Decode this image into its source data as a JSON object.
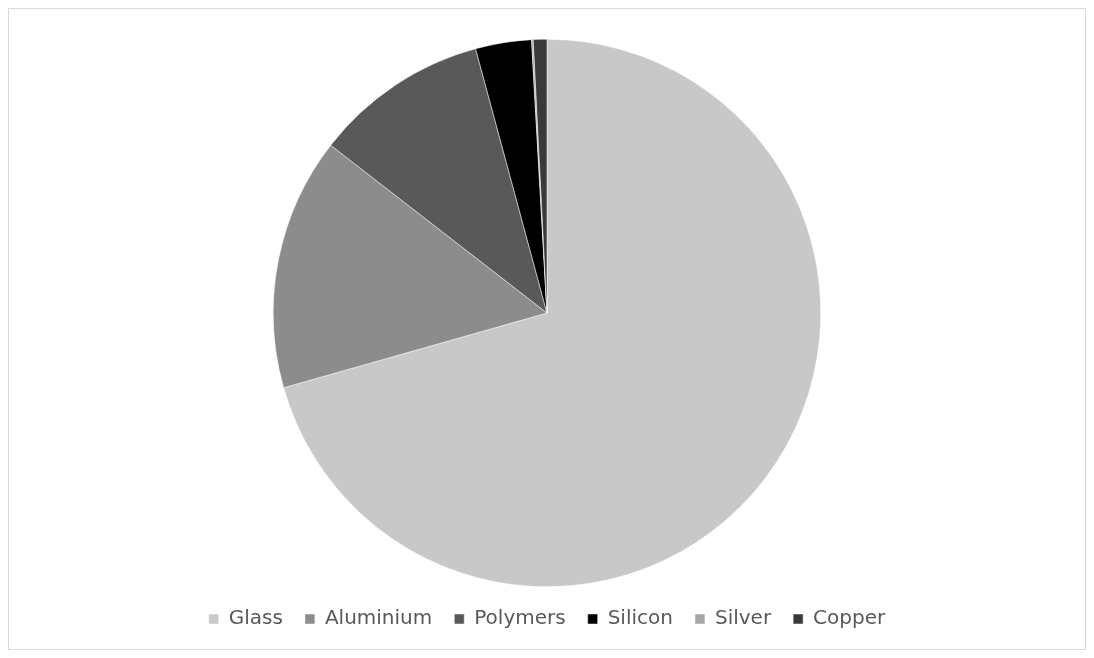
{
  "chart_data": {
    "type": "pie",
    "categories": [
      "Glass",
      "Aluminium",
      "Polymers",
      "Silicon",
      "Silver",
      "Copper"
    ],
    "values": [
      70.6,
      14.9,
      10.3,
      3.3,
      0.1,
      0.8
    ],
    "colors": [
      "#c8c8c8",
      "#8c8c8c",
      "#595959",
      "#000000",
      "#a6a6a6",
      "#3a3a3a"
    ],
    "legend": "bottom"
  }
}
